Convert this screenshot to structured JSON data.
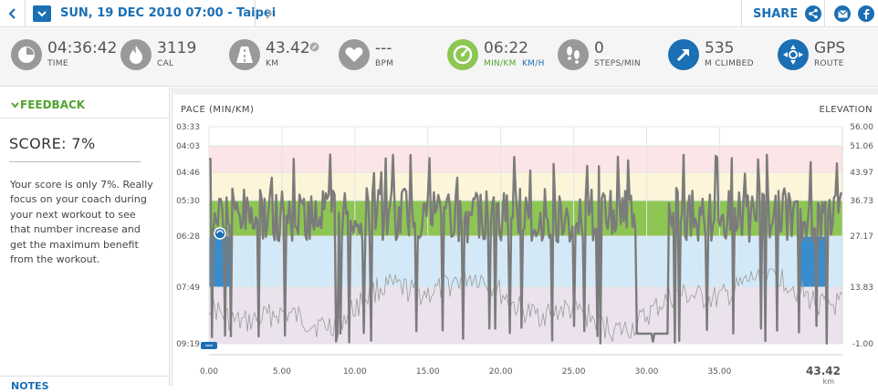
{
  "header": {
    "date_title": "SUN, 19 DEC 2010 07:00 - Taipei",
    "share_label": "SHARE"
  },
  "stats": [
    {
      "value": "04:36:42",
      "label": "TIME",
      "icon": "stopwatch-icon"
    },
    {
      "value": "3119",
      "label": "CAL",
      "icon": "flame-icon"
    },
    {
      "value": "43.42",
      "label": "KM",
      "icon": "road-icon"
    },
    {
      "value": "---",
      "label": "BPM",
      "icon": "heart-icon"
    },
    {
      "value": "06:22",
      "label": "MIN/KM",
      "label2": "KM/H",
      "icon": "pace-gauge-icon"
    },
    {
      "value": "0",
      "label": "STEPS/MIN",
      "icon": "footsteps-icon"
    },
    {
      "value": "535",
      "label": "M CLIMBED",
      "icon": "climb-arrow-icon"
    },
    {
      "value": "GPS",
      "label": "ROUTE",
      "icon": "compass-icon"
    }
  ],
  "feedback": {
    "heading": "FEEDBACK",
    "score": "SCORE: 7%",
    "text": "Your score is only 7%. Really focus on your coach during your next workout to see that number increase and get the maximum benefit from the workout.",
    "notes_label": "NOTES"
  },
  "colors": {
    "brand_blue": "#1b6fb4",
    "green": "#52a52f",
    "zone_red": "#fbe5e6",
    "zone_yellow": "#fcf5da",
    "zone_green": "#8dc653",
    "zone_blue": "#d4e9f7",
    "zone_purple": "#ebe2ee",
    "pace_line": "#7a7a7a"
  },
  "chart_data": {
    "type": "line",
    "ytitle": "PACE (MIN/KM)",
    "y2title": "ELEVATION",
    "pace_ticks": [
      "03:33",
      "04:03",
      "04:46",
      "05:30",
      "06:28",
      "07:49",
      "09:19"
    ],
    "elevation_ticks": [
      "56.00",
      "51.06",
      "43.97",
      "36.73",
      "27.17",
      "13.83",
      "-1.00"
    ],
    "x_ticks": [
      "0.00",
      "5.00",
      "10.00",
      "15.00",
      "20.00",
      "25.00",
      "30.00",
      "35.00"
    ],
    "x_end_label": "43.42",
    "x_end_unit": "km",
    "xlim": [
      0,
      43.42
    ],
    "ylim_elevation": [
      -1,
      56
    ],
    "zones": [
      {
        "name": "zone-red",
        "from": "04:03",
        "to": "04:46",
        "color": "#fbe5e6"
      },
      {
        "name": "zone-yellow",
        "from": "04:46",
        "to": "05:30",
        "color": "#fcf5da"
      },
      {
        "name": "zone-green",
        "from": "05:30",
        "to": "06:28",
        "color": "#8dc653"
      },
      {
        "name": "zone-blue",
        "from": "06:28",
        "to": "07:49",
        "color": "#d4e9f7"
      },
      {
        "name": "zone-purple",
        "from": "07:49",
        "to": "09:19",
        "color": "#ebe2ee"
      }
    ],
    "current_pace": "06:28",
    "grid": true
  }
}
